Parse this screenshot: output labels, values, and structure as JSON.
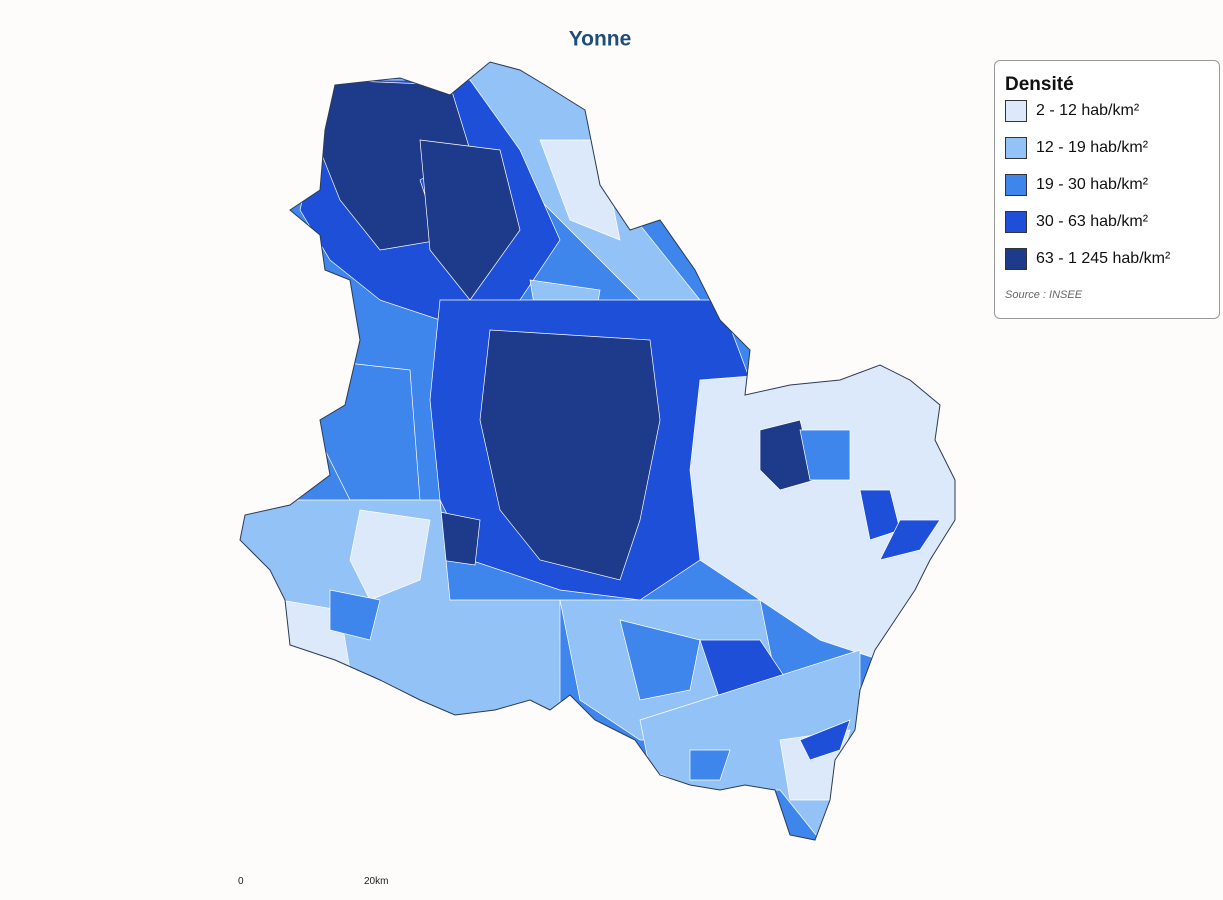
{
  "title": "Yonne",
  "legend": {
    "title": "Densité",
    "items": [
      {
        "label": "2 - 12 hab/km²",
        "color": "#dce9fb"
      },
      {
        "label": "12 - 19 hab/km²",
        "color": "#93c2f6"
      },
      {
        "label": "19 - 30 hab/km²",
        "color": "#3f86ec"
      },
      {
        "label": "30 - 63 hab/km²",
        "color": "#1d4fd9"
      },
      {
        "label": "63 - 1 245 hab/km²",
        "color": "#1e3a8a"
      }
    ],
    "source": "Source : INSEE"
  },
  "scale": {
    "labels": [
      "0",
      "20km"
    ]
  }
}
